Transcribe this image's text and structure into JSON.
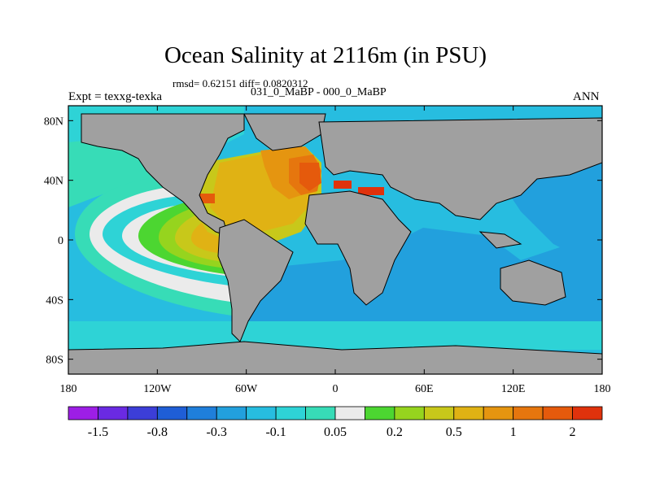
{
  "header": {
    "title": "Ocean Salinity at 2116m (in PSU)",
    "stats": "rmsd= 0.62151 diff= 0.0820312",
    "subtitle": "031_0_MaBP - 000_0_MaBP",
    "expt": "Expt = texxg-texka",
    "season": "ANN"
  },
  "axes": {
    "y_ticks": [
      "80N",
      "40N",
      "0",
      "40S",
      "80S"
    ],
    "y_values": [
      80,
      40,
      0,
      -40,
      -80
    ],
    "x_ticks": [
      "180",
      "120W",
      "60W",
      "0",
      "60E",
      "120E",
      "180"
    ],
    "x_values": [
      -180,
      -120,
      -60,
      0,
      60,
      120,
      180
    ]
  },
  "colorbar": {
    "colors": [
      "#9d1ee6",
      "#6a2ae3",
      "#3c3ed8",
      "#1f5ed6",
      "#1f7fdb",
      "#22a0dd",
      "#27bde0",
      "#2ed3d6",
      "#37dcb7",
      "#ebebeb",
      "#4cd631",
      "#96d41e",
      "#c8c81a",
      "#e0b214",
      "#e59510",
      "#e6760e",
      "#e55a0c",
      "#e0320c"
    ],
    "labels": [
      "-1.5",
      "-0.8",
      "-0.3",
      "-0.1",
      "0.05",
      "0.2",
      "0.5",
      "1",
      "2"
    ],
    "label_after_index": [
      1,
      3,
      5,
      7,
      9,
      11,
      13,
      15,
      17
    ]
  },
  "colors": {
    "land": "#a0a0a0",
    "ocean_base": "#27bde0"
  }
}
